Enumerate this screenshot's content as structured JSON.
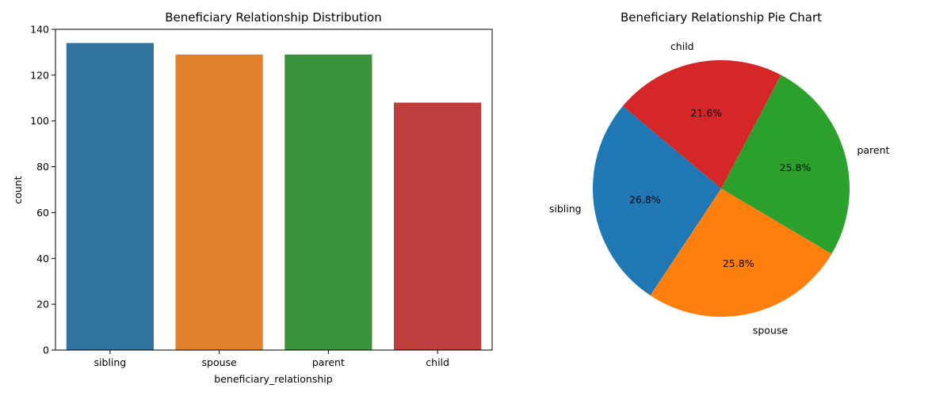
{
  "chart_data": [
    {
      "type": "bar",
      "title": "Beneficiary Relationship Distribution",
      "xlabel": "beneficiary_relationship",
      "ylabel": "count",
      "categories": [
        "sibling",
        "spouse",
        "parent",
        "child"
      ],
      "values": [
        134,
        129,
        129,
        108
      ],
      "colors": [
        "#3274a1",
        "#e1812c",
        "#3a923a",
        "#c03d3e"
      ],
      "ylim": [
        0,
        140
      ],
      "yticks": [
        0,
        20,
        40,
        60,
        80,
        100,
        120,
        140
      ],
      "grid": false
    },
    {
      "type": "pie",
      "title": "Beneficiary Relationship Pie Chart",
      "categories": [
        "sibling",
        "spouse",
        "parent",
        "child"
      ],
      "values": [
        134,
        129,
        129,
        108
      ],
      "percent_labels": [
        "26.8%",
        "25.8%",
        "25.8%",
        "21.6%"
      ],
      "colors": [
        "#1f77b4",
        "#ff7f0e",
        "#2ca02c",
        "#d62728"
      ],
      "start_angle_deg": 140
    }
  ]
}
